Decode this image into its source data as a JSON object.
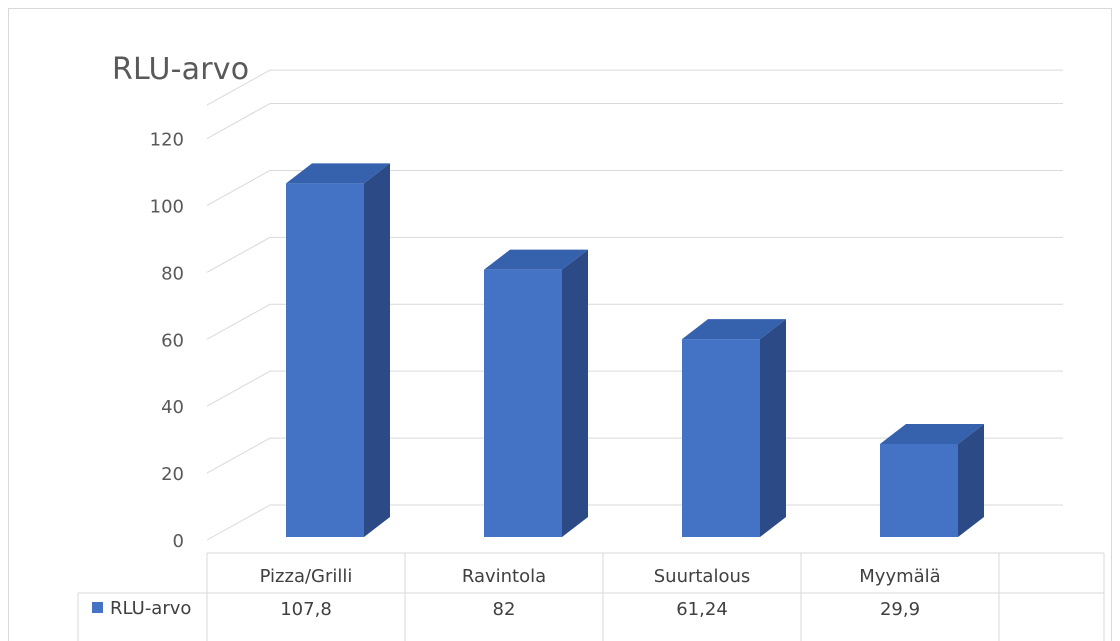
{
  "chart_data": {
    "type": "bar",
    "title": "RLU-arvo",
    "categories": [
      "Pizza/Grilli",
      "Ravintola",
      "Suurtalous",
      "Myymälä"
    ],
    "series": [
      {
        "name": "RLU-arvo",
        "values": [
          107.8,
          82,
          61.24,
          29.9
        ],
        "labels": [
          "107,8",
          "82",
          "61,24",
          "29,9"
        ],
        "color": "#4472c4"
      }
    ],
    "y_ticks": [
      "0",
      "20",
      "40",
      "60",
      "80",
      "100",
      "120"
    ],
    "ylim": [
      0,
      120
    ],
    "grid": true,
    "legend": "data-table-left",
    "style": "3d-column with data table"
  }
}
